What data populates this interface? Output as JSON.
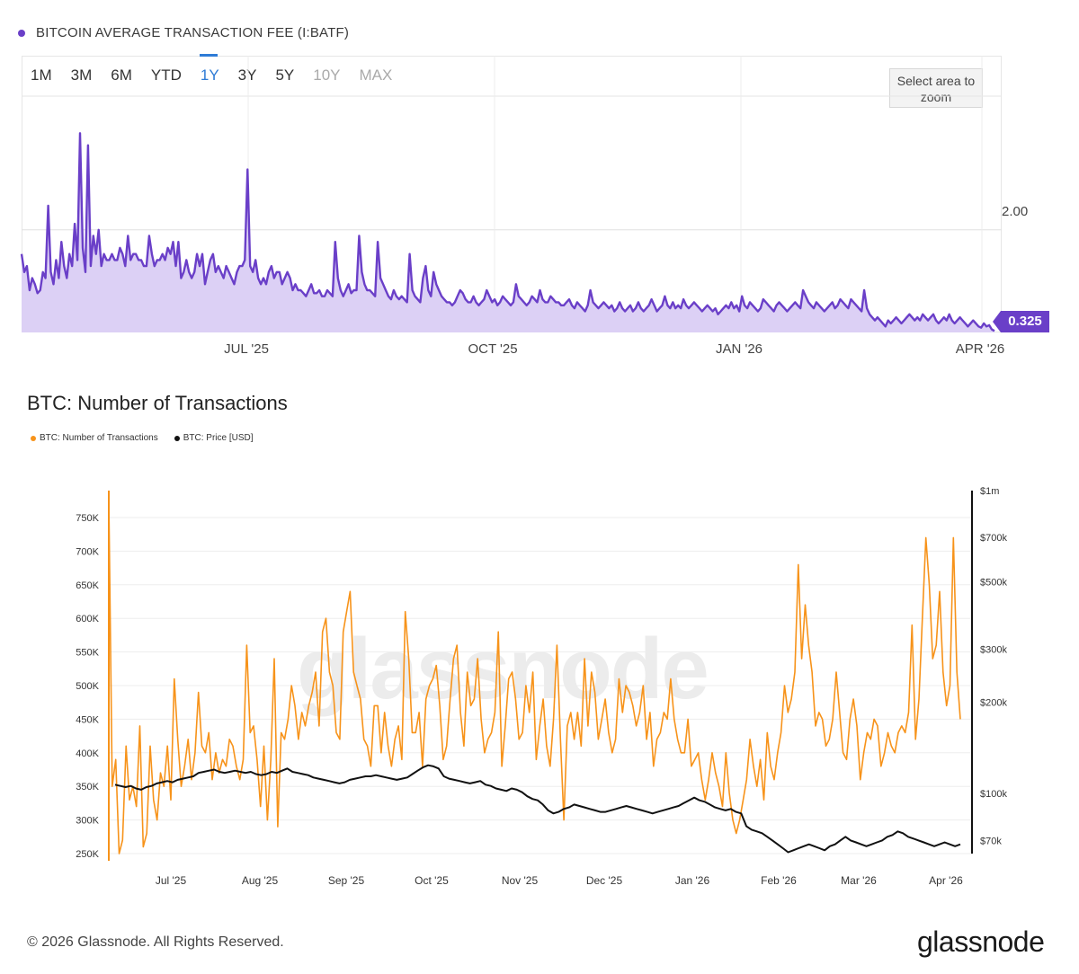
{
  "top_chart": {
    "legend_label": "BITCOIN AVERAGE TRANSACTION FEE (I:BATF)",
    "accent_color": "#6a3fc8",
    "range_buttons": [
      {
        "label": "1M",
        "state": "normal"
      },
      {
        "label": "3M",
        "state": "normal"
      },
      {
        "label": "6M",
        "state": "normal"
      },
      {
        "label": "YTD",
        "state": "normal"
      },
      {
        "label": "1Y",
        "state": "active"
      },
      {
        "label": "3Y",
        "state": "normal"
      },
      {
        "label": "5Y",
        "state": "normal"
      },
      {
        "label": "10Y",
        "state": "disabled"
      },
      {
        "label": "MAX",
        "state": "disabled"
      }
    ],
    "zoom_hint": "Select area to zoom",
    "last_value_label": "0.325",
    "y_tick_label": "2.00"
  },
  "bottom_chart": {
    "title": "BTC: Number of Transactions",
    "legend": [
      {
        "label": "BTC: Number of Transactions",
        "color": "#f7931a"
      },
      {
        "label": "BTC: Price [USD]",
        "color": "#111111"
      }
    ],
    "watermark": "glassnode",
    "copyright": "© 2026 Glassnode. All Rights Reserved.",
    "brand": "glassnode"
  },
  "chart_data": [
    {
      "type": "area",
      "title": "BITCOIN AVERAGE TRANSACTION FEE (I:BATF)",
      "x_ticks": [
        "JUL '25",
        "OCT '25",
        "JAN '26",
        "APR '26"
      ],
      "y_ticks": [
        2.0
      ],
      "ylim": [
        0.3,
        4.2
      ],
      "last_value": 0.325,
      "series": [
        {
          "name": "I:BATF",
          "values": [
            1.6,
            1.3,
            1.4,
            1.0,
            1.2,
            1.1,
            0.95,
            1.0,
            1.3,
            1.2,
            2.4,
            1.3,
            1.1,
            1.5,
            1.2,
            1.8,
            1.4,
            1.2,
            1.6,
            1.4,
            2.1,
            1.5,
            3.6,
            1.7,
            1.3,
            3.4,
            1.4,
            1.9,
            1.6,
            2.0,
            1.4,
            1.6,
            1.5,
            1.5,
            1.6,
            1.5,
            1.5,
            1.7,
            1.6,
            1.4,
            1.9,
            1.5,
            1.6,
            1.6,
            1.5,
            1.5,
            1.4,
            1.4,
            1.9,
            1.6,
            1.4,
            1.5,
            1.5,
            1.6,
            1.5,
            1.7,
            1.6,
            1.8,
            1.4,
            1.8,
            1.2,
            1.3,
            1.5,
            1.3,
            1.2,
            1.3,
            1.6,
            1.4,
            1.6,
            1.1,
            1.3,
            1.5,
            1.6,
            1.3,
            1.4,
            1.3,
            1.2,
            1.4,
            1.3,
            1.2,
            1.1,
            1.3,
            1.4,
            1.4,
            1.5,
            3.0,
            1.4,
            1.3,
            1.5,
            1.2,
            1.1,
            1.2,
            1.1,
            1.3,
            1.4,
            1.2,
            1.3,
            1.3,
            1.1,
            1.2,
            1.3,
            1.2,
            1.0,
            1.1,
            1.0,
            1.0,
            0.95,
            0.9,
            1.0,
            1.1,
            0.95,
            0.95,
            1.0,
            0.9,
            0.9,
            1.0,
            0.95,
            0.9,
            1.8,
            1.2,
            1.0,
            0.9,
            1.0,
            1.1,
            0.95,
            1.0,
            1.0,
            1.9,
            1.3,
            1.1,
            1.0,
            1.0,
            0.95,
            0.9,
            1.8,
            1.2,
            1.1,
            1.0,
            0.9,
            0.85,
            1.0,
            0.9,
            0.85,
            0.9,
            0.85,
            0.8,
            1.6,
            1.0,
            0.9,
            0.85,
            0.8,
            1.2,
            1.4,
            1.0,
            0.9,
            1.3,
            1.1,
            1.0,
            0.9,
            0.85,
            0.8,
            0.8,
            0.75,
            0.8,
            0.9,
            1.0,
            0.95,
            0.85,
            0.8,
            0.8,
            0.9,
            0.8,
            0.75,
            0.8,
            0.85,
            1.0,
            0.9,
            0.8,
            0.85,
            0.75,
            0.8,
            0.9,
            0.85,
            0.8,
            0.75,
            0.8,
            1.1,
            0.9,
            0.85,
            0.8,
            0.75,
            0.8,
            0.9,
            0.85,
            0.8,
            1.0,
            0.85,
            0.8,
            0.8,
            0.9,
            0.85,
            0.8,
            0.8,
            0.75,
            0.75,
            0.8,
            0.85,
            0.75,
            0.7,
            0.8,
            0.75,
            0.7,
            0.65,
            0.75,
            1.0,
            0.8,
            0.75,
            0.7,
            0.75,
            0.8,
            0.75,
            0.7,
            0.75,
            0.65,
            0.7,
            0.8,
            0.7,
            0.65,
            0.7,
            0.75,
            0.65,
            0.7,
            0.8,
            0.7,
            0.65,
            0.7,
            0.75,
            0.85,
            0.75,
            0.65,
            0.7,
            0.75,
            0.9,
            0.75,
            0.7,
            0.8,
            0.7,
            0.75,
            0.7,
            0.85,
            0.75,
            0.7,
            0.75,
            0.8,
            0.75,
            0.7,
            0.65,
            0.7,
            0.75,
            0.7,
            0.65,
            0.7,
            0.6,
            0.65,
            0.7,
            0.75,
            0.7,
            0.8,
            0.7,
            0.75,
            0.65,
            0.9,
            0.75,
            0.7,
            0.8,
            0.75,
            0.7,
            0.65,
            0.7,
            0.85,
            0.8,
            0.75,
            0.7,
            0.65,
            0.75,
            0.8,
            0.75,
            0.7,
            0.65,
            0.7,
            0.75,
            0.8,
            0.75,
            0.7,
            1.0,
            0.9,
            0.8,
            0.75,
            0.7,
            0.8,
            0.75,
            0.7,
            0.65,
            0.7,
            0.75,
            0.8,
            0.7,
            0.75,
            0.85,
            0.8,
            0.75,
            0.7,
            0.85,
            0.8,
            0.75,
            0.7,
            0.65,
            1.0,
            0.7,
            0.6,
            0.55,
            0.5,
            0.55,
            0.5,
            0.45,
            0.4,
            0.5,
            0.45,
            0.5,
            0.55,
            0.5,
            0.45,
            0.5,
            0.55,
            0.6,
            0.55,
            0.5,
            0.55,
            0.5,
            0.6,
            0.55,
            0.5,
            0.55,
            0.6,
            0.5,
            0.45,
            0.5,
            0.55,
            0.5,
            0.6,
            0.5,
            0.45,
            0.5,
            0.55,
            0.5,
            0.45,
            0.4,
            0.45,
            0.5,
            0.45,
            0.4,
            0.38,
            0.45,
            0.4,
            0.42,
            0.35,
            0.325
          ]
        }
      ]
    },
    {
      "type": "line",
      "title": "BTC: Number of Transactions",
      "x_ticks": [
        "Jul '25",
        "Aug '25",
        "Sep '25",
        "Oct '25",
        "Nov '25",
        "Dec '25",
        "Jan '26",
        "Feb '26",
        "Mar '26",
        "Apr '26"
      ],
      "y_left_ticks": [
        "250K",
        "300K",
        "350K",
        "400K",
        "450K",
        "500K",
        "550K",
        "600K",
        "650K",
        "700K",
        "750K"
      ],
      "y_left_range": [
        250000,
        750000
      ],
      "y_right_ticks": [
        "$70k",
        "$100k",
        "$200k",
        "$300k",
        "$500k",
        "$700k",
        "$1m"
      ],
      "y_right_scale": "log",
      "series": [
        {
          "name": "BTC: Number of Transactions",
          "color": "#f7931a",
          "values": [
            780000,
            350000,
            390000,
            250000,
            270000,
            410000,
            330000,
            350000,
            320000,
            440000,
            260000,
            280000,
            410000,
            330000,
            300000,
            370000,
            350000,
            410000,
            330000,
            510000,
            420000,
            350000,
            380000,
            420000,
            360000,
            400000,
            490000,
            410000,
            400000,
            430000,
            360000,
            400000,
            370000,
            390000,
            380000,
            420000,
            410000,
            380000,
            360000,
            390000,
            560000,
            430000,
            440000,
            390000,
            320000,
            410000,
            300000,
            390000,
            540000,
            290000,
            430000,
            420000,
            450000,
            500000,
            470000,
            420000,
            460000,
            440000,
            470000,
            490000,
            520000,
            440000,
            580000,
            600000,
            520000,
            500000,
            430000,
            420000,
            580000,
            610000,
            640000,
            520000,
            500000,
            480000,
            420000,
            410000,
            380000,
            470000,
            470000,
            400000,
            460000,
            410000,
            380000,
            420000,
            440000,
            390000,
            610000,
            540000,
            430000,
            430000,
            460000,
            380000,
            480000,
            500000,
            510000,
            530000,
            470000,
            390000,
            410000,
            480000,
            540000,
            560000,
            460000,
            410000,
            520000,
            470000,
            480000,
            540000,
            450000,
            400000,
            420000,
            430000,
            460000,
            580000,
            380000,
            440000,
            510000,
            520000,
            480000,
            420000,
            430000,
            500000,
            460000,
            520000,
            390000,
            440000,
            480000,
            410000,
            380000,
            450000,
            560000,
            420000,
            300000,
            440000,
            460000,
            420000,
            460000,
            410000,
            540000,
            440000,
            520000,
            490000,
            420000,
            450000,
            480000,
            430000,
            400000,
            420000,
            510000,
            460000,
            500000,
            490000,
            470000,
            440000,
            460000,
            500000,
            420000,
            460000,
            380000,
            420000,
            430000,
            460000,
            450000,
            510000,
            450000,
            420000,
            400000,
            400000,
            450000,
            380000,
            390000,
            400000,
            360000,
            330000,
            360000,
            400000,
            370000,
            350000,
            320000,
            400000,
            340000,
            300000,
            280000,
            300000,
            330000,
            360000,
            420000,
            380000,
            350000,
            390000,
            330000,
            430000,
            380000,
            360000,
            400000,
            430000,
            500000,
            460000,
            480000,
            520000,
            680000,
            540000,
            620000,
            560000,
            520000,
            440000,
            460000,
            450000,
            410000,
            420000,
            450000,
            520000,
            460000,
            400000,
            390000,
            450000,
            480000,
            440000,
            360000,
            400000,
            430000,
            420000,
            450000,
            440000,
            380000,
            400000,
            430000,
            410000,
            400000,
            430000,
            440000,
            430000,
            460000,
            590000,
            420000,
            480000,
            600000,
            720000,
            650000,
            540000,
            560000,
            640000,
            520000,
            470000,
            500000,
            720000,
            520000,
            450000
          ]
        },
        {
          "name": "BTC: Price [USD]",
          "color": "#111111",
          "values": [
            107000,
            106000,
            105000,
            106000,
            104000,
            103000,
            105000,
            106000,
            108000,
            109000,
            110000,
            109000,
            111000,
            112000,
            113000,
            114000,
            117000,
            118000,
            119000,
            120000,
            118000,
            117000,
            118000,
            119000,
            118000,
            117000,
            118000,
            116000,
            115000,
            116000,
            118000,
            117000,
            119000,
            121000,
            118000,
            117000,
            116000,
            115000,
            113000,
            112000,
            111000,
            110000,
            109000,
            108000,
            109000,
            111000,
            112000,
            113000,
            114000,
            114000,
            115000,
            114000,
            113000,
            112000,
            111000,
            112000,
            113000,
            116000,
            119000,
            122000,
            124000,
            123000,
            121000,
            114000,
            112000,
            111000,
            110000,
            109000,
            108000,
            109000,
            110000,
            107000,
            106000,
            104000,
            103000,
            102000,
            104000,
            103000,
            101000,
            98000,
            96000,
            95000,
            92000,
            88000,
            86000,
            87000,
            89000,
            90000,
            92000,
            91000,
            90000,
            89000,
            88000,
            87000,
            87000,
            88000,
            89000,
            90000,
            91000,
            90000,
            89000,
            88000,
            87000,
            86000,
            87000,
            88000,
            89000,
            90000,
            91000,
            93000,
            95000,
            97000,
            95000,
            94000,
            92000,
            90000,
            89000,
            88000,
            89000,
            87000,
            86000,
            78000,
            76000,
            75000,
            74000,
            72000,
            70000,
            68000,
            66000,
            64000,
            65000,
            66000,
            67000,
            68000,
            67000,
            66000,
            65000,
            67000,
            68000,
            70000,
            72000,
            70000,
            69000,
            68000,
            67000,
            68000,
            69000,
            70000,
            72000,
            73000,
            75000,
            74000,
            72000,
            71000,
            70000,
            69000,
            68000,
            67000,
            68000,
            69000,
            68000,
            67000,
            68000
          ]
        }
      ]
    }
  ]
}
